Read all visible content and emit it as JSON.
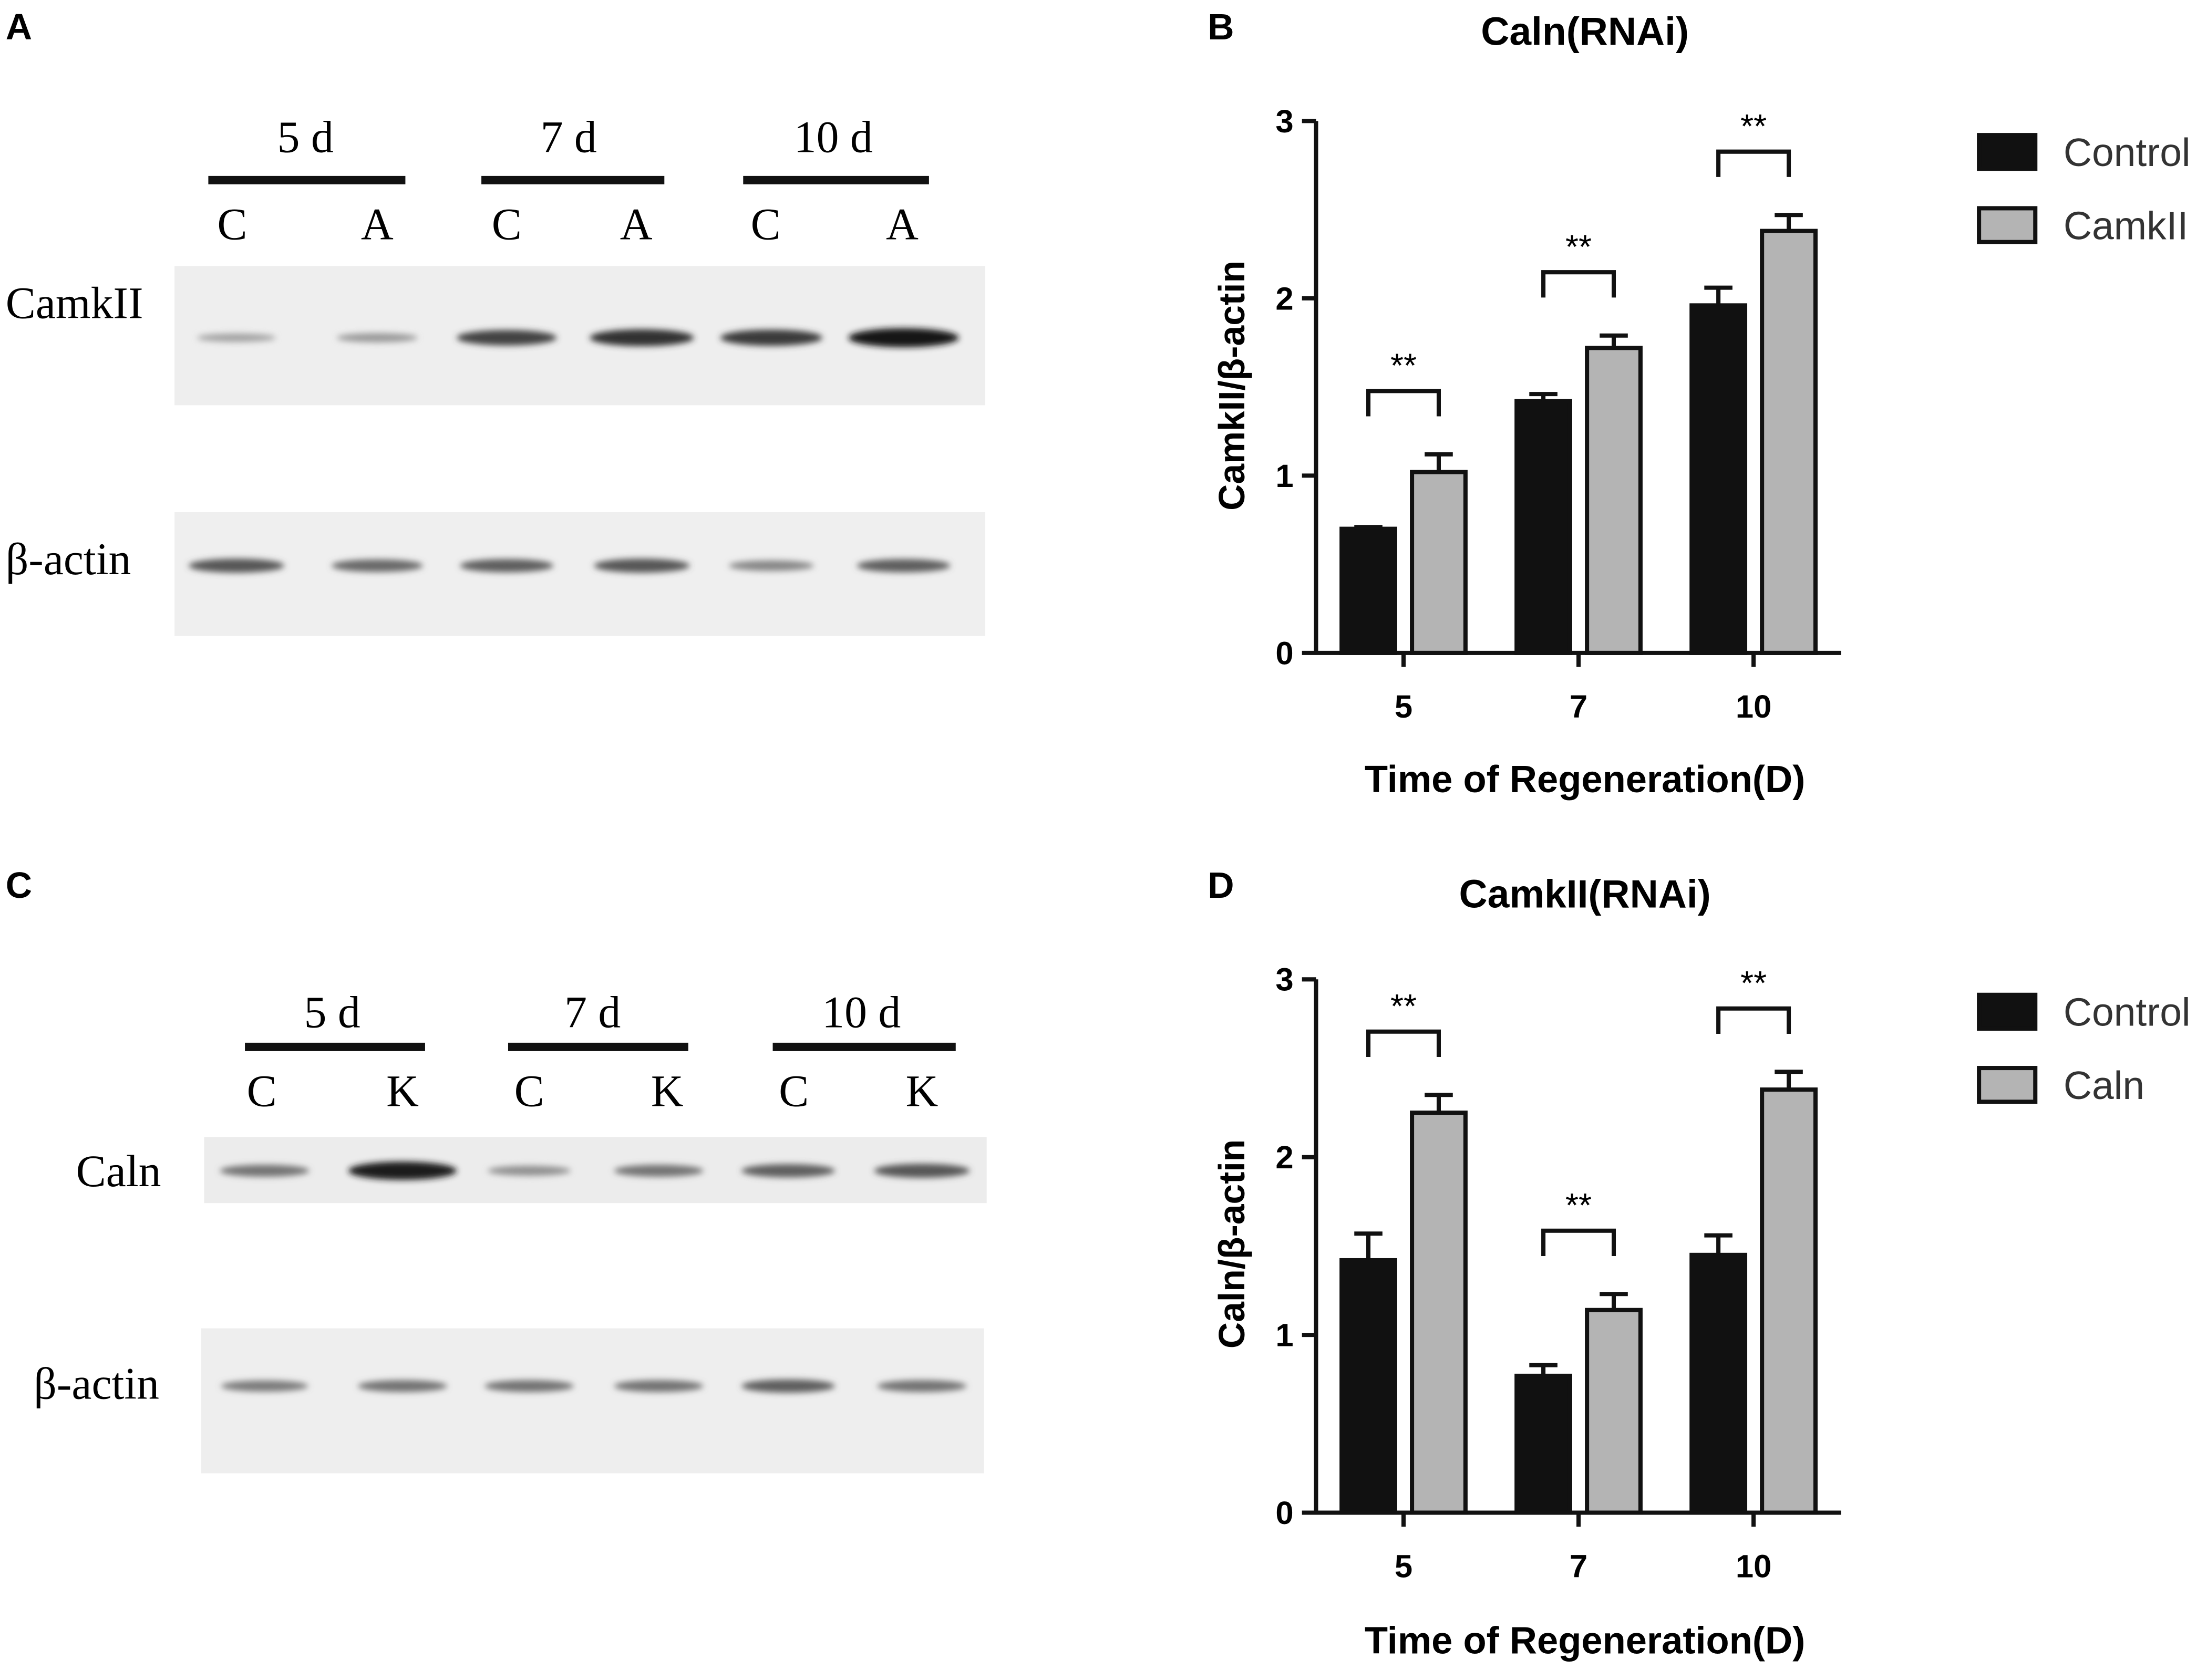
{
  "panels": {
    "A": {
      "letter": "A",
      "groups": [
        {
          "label": "5 d",
          "lanes": [
            "C",
            "A"
          ]
        },
        {
          "label": "7 d",
          "lanes": [
            "C",
            "A"
          ]
        },
        {
          "label": "10 d",
          "lanes": [
            "C",
            "A"
          ]
        }
      ],
      "rows": [
        {
          "label": "CamkII",
          "bands": [
            0.2,
            0.25,
            0.7,
            0.8,
            0.75,
            0.95
          ]
        },
        {
          "label": "β-actin",
          "bands": [
            0.6,
            0.5,
            0.55,
            0.6,
            0.35,
            0.55
          ]
        }
      ]
    },
    "C": {
      "letter": "C",
      "groups": [
        {
          "label": "5 d",
          "lanes": [
            "C",
            "K"
          ]
        },
        {
          "label": "7 d",
          "lanes": [
            "C",
            "K"
          ]
        },
        {
          "label": "10 d",
          "lanes": [
            "C",
            "K"
          ]
        }
      ],
      "rows": [
        {
          "label": "Caln",
          "bands": [
            0.45,
            0.9,
            0.3,
            0.45,
            0.55,
            0.6
          ]
        },
        {
          "label": "β-actin",
          "bands": [
            0.4,
            0.45,
            0.45,
            0.45,
            0.55,
            0.45
          ]
        }
      ]
    }
  },
  "chart_data": [
    {
      "letter": "B",
      "type": "bar",
      "title": "Caln(RNAi)",
      "xlabel": "Time of Regeneration(D)",
      "ylabel": "CamkII/β-actin",
      "categories": [
        "5",
        "7",
        "10"
      ],
      "ylim": [
        0,
        3
      ],
      "yticks": [
        "0",
        "1",
        "2",
        "3"
      ],
      "grid": false,
      "legend_position": "top-right",
      "series": [
        {
          "name": "Control",
          "color": "#111111",
          "values": [
            0.7,
            1.42,
            1.96
          ],
          "errors": [
            0.01,
            0.04,
            0.1
          ]
        },
        {
          "name": "CamkII",
          "color": "#b4b4b4",
          "values": [
            1.02,
            1.72,
            2.38
          ],
          "errors": [
            0.1,
            0.07,
            0.09
          ]
        }
      ],
      "significance": [
        {
          "category": "5",
          "label": "**"
        },
        {
          "category": "7",
          "label": "**"
        },
        {
          "category": "10",
          "label": "**"
        }
      ]
    },
    {
      "letter": "D",
      "type": "bar",
      "title": "CamkII(RNAi)",
      "xlabel": "Time of Regeneration(D)",
      "ylabel": "Caln/β-actin",
      "categories": [
        "5",
        "7",
        "10"
      ],
      "ylim": [
        0,
        3
      ],
      "yticks": [
        "0",
        "1",
        "2",
        "3"
      ],
      "grid": false,
      "legend_position": "top-right",
      "series": [
        {
          "name": "Control",
          "color": "#111111",
          "values": [
            1.42,
            0.77,
            1.45
          ],
          "errors": [
            0.15,
            0.06,
            0.11
          ]
        },
        {
          "name": "Caln",
          "color": "#b4b4b4",
          "values": [
            2.25,
            1.14,
            2.38
          ],
          "errors": [
            0.1,
            0.09,
            0.1
          ]
        }
      ],
      "significance": [
        {
          "category": "5",
          "label": "**"
        },
        {
          "category": "7",
          "label": "**"
        },
        {
          "category": "10",
          "label": "**"
        }
      ]
    }
  ]
}
